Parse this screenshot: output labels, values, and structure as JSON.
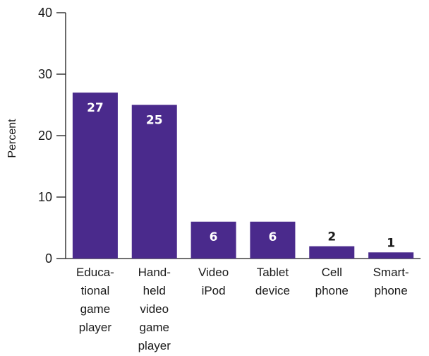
{
  "chart_data": {
    "type": "bar",
    "title": "",
    "xlabel": "",
    "ylabel": "Percent",
    "ylim": [
      0,
      40
    ],
    "yticks": [
      0,
      10,
      20,
      30,
      40
    ],
    "grid": false,
    "categories": [
      [
        "Educa-",
        "tional",
        "game",
        "player"
      ],
      [
        "Hand-",
        "held",
        "video",
        "game",
        "player"
      ],
      [
        "Video",
        "iPod"
      ],
      [
        "Tablet",
        "device"
      ],
      [
        "Cell",
        "phone"
      ],
      [
        "Smart-",
        "phone"
      ]
    ],
    "values": [
      27,
      25,
      6,
      6,
      2,
      1
    ],
    "data_labels": [
      "27",
      "25",
      "6",
      "6",
      "2",
      "1"
    ],
    "colors": {
      "bar": "#4a2a8c",
      "label_inside": "#ffffff",
      "label_outside": "#1a1a1a"
    }
  }
}
